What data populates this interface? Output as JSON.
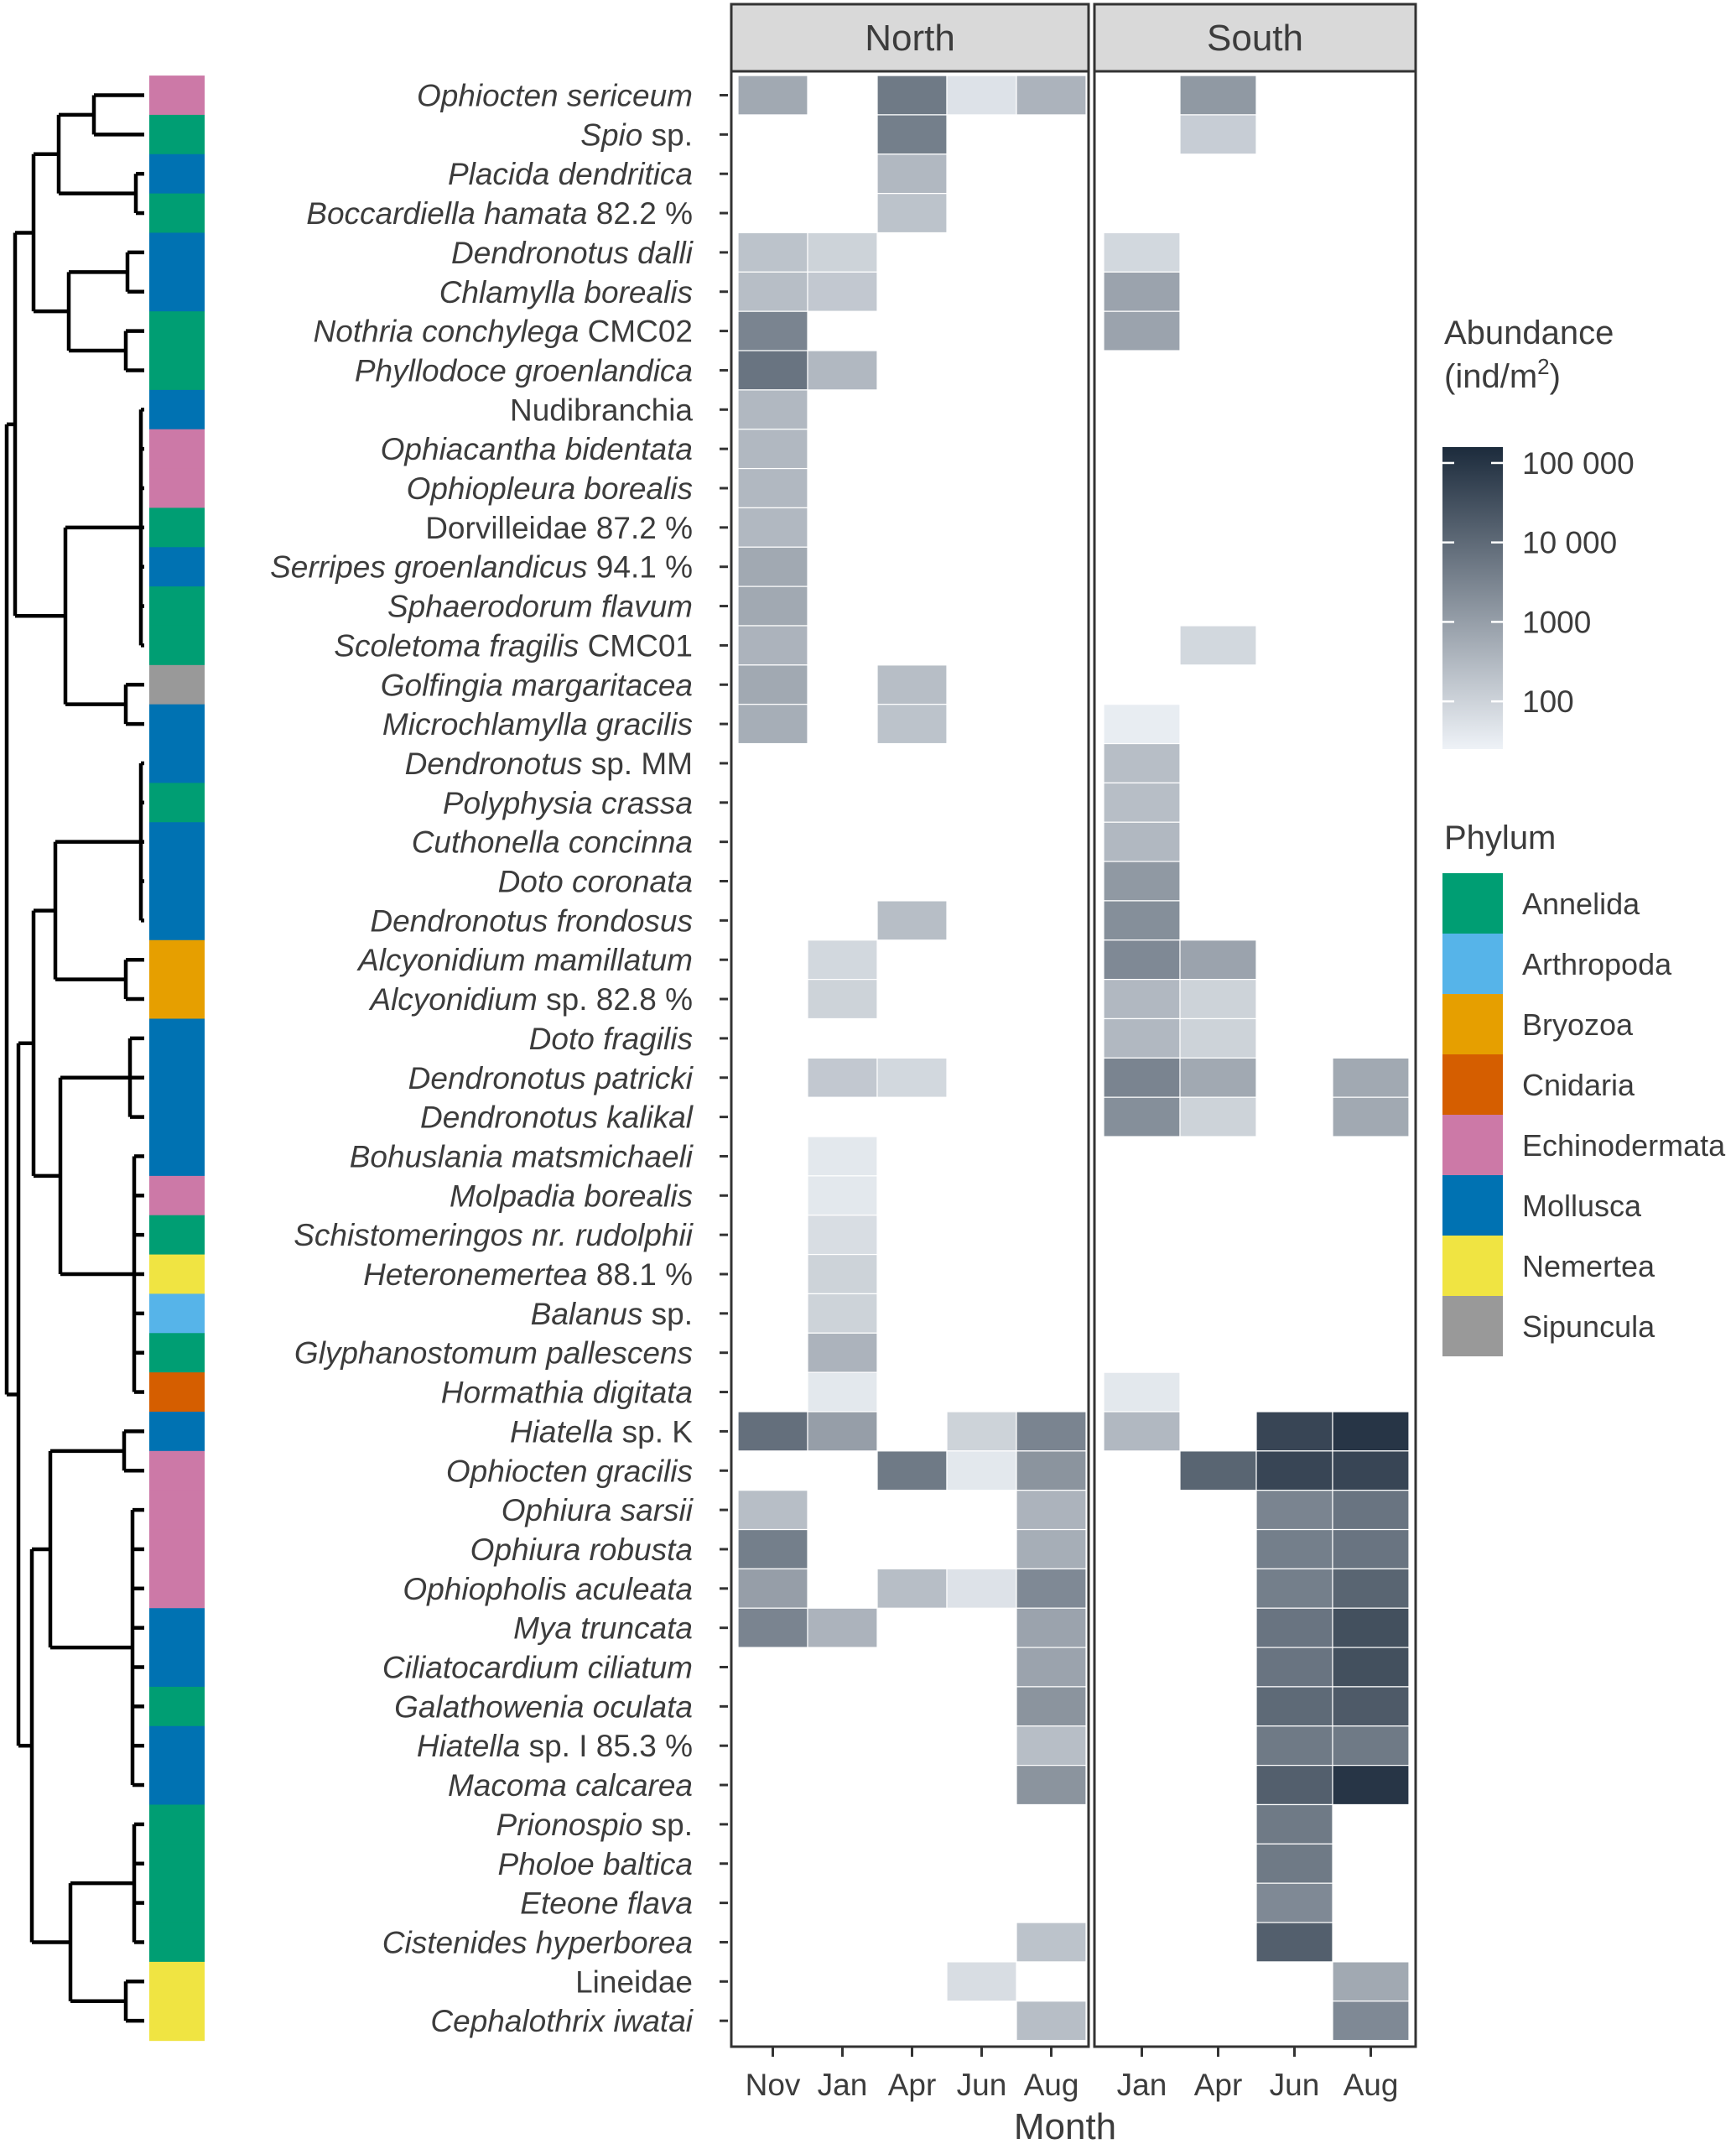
{
  "chart_data": {
    "type": "heatmap",
    "xlabel": "Month",
    "facets": [
      {
        "name": "North",
        "months": [
          "Nov",
          "Jan",
          "Apr",
          "Jun",
          "Aug"
        ]
      },
      {
        "name": "South",
        "months": [
          "Jan",
          "Apr",
          "Jun",
          "Aug"
        ]
      }
    ],
    "species": [
      {
        "name": "Ophiocten sericeum",
        "italic": "Ophiocten sericeum",
        "suffix": "",
        "phylum": "Echinodermata"
      },
      {
        "name": "Spio sp.",
        "italic": "Spio",
        "suffix": " sp.",
        "phylum": "Annelida"
      },
      {
        "name": "Placida dendritica",
        "italic": "Placida dendritica",
        "suffix": "",
        "phylum": "Mollusca"
      },
      {
        "name": "Boccardiella hamata 82.2 %",
        "italic": "Boccardiella hamata",
        "suffix": " 82.2 %",
        "phylum": "Annelida"
      },
      {
        "name": "Dendronotus dalli",
        "italic": "Dendronotus dalli",
        "suffix": "",
        "phylum": "Mollusca"
      },
      {
        "name": "Chlamylla borealis",
        "italic": "Chlamylla borealis",
        "suffix": "",
        "phylum": "Mollusca"
      },
      {
        "name": "Nothria conchylega CMC02",
        "italic": "Nothria conchylega",
        "suffix": " CMC02",
        "phylum": "Annelida"
      },
      {
        "name": "Phyllodoce groenlandica",
        "italic": "Phyllodoce groenlandica",
        "suffix": "",
        "phylum": "Annelida"
      },
      {
        "name": "Nudibranchia",
        "italic": "",
        "suffix": "Nudibranchia",
        "phylum": "Mollusca"
      },
      {
        "name": "Ophiacantha bidentata",
        "italic": "Ophiacantha bidentata",
        "suffix": "",
        "phylum": "Echinodermata"
      },
      {
        "name": "Ophiopleura borealis",
        "italic": "Ophiopleura borealis",
        "suffix": "",
        "phylum": "Echinodermata"
      },
      {
        "name": "Dorvilleidae 87.2 %",
        "italic": "",
        "suffix": "Dorvilleidae 87.2 %",
        "phylum": "Annelida"
      },
      {
        "name": "Serripes groenlandicus 94.1 %",
        "italic": "Serripes groenlandicus",
        "suffix": " 94.1 %",
        "phylum": "Mollusca"
      },
      {
        "name": "Sphaerodorum flavum",
        "italic": "Sphaerodorum flavum",
        "suffix": "",
        "phylum": "Annelida"
      },
      {
        "name": "Scoletoma fragilis CMC01",
        "italic": "Scoletoma fragilis",
        "suffix": " CMC01",
        "phylum": "Annelida"
      },
      {
        "name": "Golfingia margaritacea",
        "italic": "Golfingia margaritacea",
        "suffix": "",
        "phylum": "Sipuncula"
      },
      {
        "name": "Microchlamylla gracilis",
        "italic": "Microchlamylla gracilis",
        "suffix": "",
        "phylum": "Mollusca"
      },
      {
        "name": "Dendronotus sp. MM",
        "italic": "Dendronotus",
        "suffix": " sp. MM",
        "phylum": "Mollusca"
      },
      {
        "name": "Polyphysia crassa",
        "italic": "Polyphysia crassa",
        "suffix": "",
        "phylum": "Annelida"
      },
      {
        "name": "Cuthonella concinna",
        "italic": "Cuthonella concinna",
        "suffix": "",
        "phylum": "Mollusca"
      },
      {
        "name": "Doto coronata",
        "italic": "Doto coronata",
        "suffix": "",
        "phylum": "Mollusca"
      },
      {
        "name": "Dendronotus frondosus",
        "italic": "Dendronotus frondosus",
        "suffix": "",
        "phylum": "Mollusca"
      },
      {
        "name": "Alcyonidium mamillatum",
        "italic": "Alcyonidium mamillatum",
        "suffix": "",
        "phylum": "Bryozoa"
      },
      {
        "name": "Alcyonidium sp. 82.8 %",
        "italic": "Alcyonidium",
        "suffix": " sp. 82.8 %",
        "phylum": "Bryozoa"
      },
      {
        "name": "Doto fragilis",
        "italic": "Doto fragilis",
        "suffix": "",
        "phylum": "Mollusca"
      },
      {
        "name": "Dendronotus patricki",
        "italic": "Dendronotus patricki",
        "suffix": "",
        "phylum": "Mollusca"
      },
      {
        "name": "Dendronotus kalikal",
        "italic": "Dendronotus kalikal",
        "suffix": "",
        "phylum": "Mollusca"
      },
      {
        "name": "Bohuslania matsmichaeli",
        "italic": "Bohuslania matsmichaeli",
        "suffix": "",
        "phylum": "Mollusca"
      },
      {
        "name": "Molpadia borealis",
        "italic": "Molpadia borealis",
        "suffix": "",
        "phylum": "Echinodermata"
      },
      {
        "name": "Schistomeringos nr. rudolphii",
        "italic": "Schistomeringos nr. rudolphii",
        "suffix": "",
        "phylum": "Annelida"
      },
      {
        "name": "Heteronemertea 88.1 %",
        "italic": "Heteronemertea",
        "suffix": " 88.1 %",
        "phylum": "Nemertea"
      },
      {
        "name": "Balanus sp.",
        "italic": "Balanus",
        "suffix": " sp.",
        "phylum": "Arthropoda"
      },
      {
        "name": "Glyphanostomum pallescens",
        "italic": "Glyphanostomum pallescens",
        "suffix": "",
        "phylum": "Annelida"
      },
      {
        "name": "Hormathia digitata",
        "italic": "Hormathia digitata",
        "suffix": "",
        "phylum": "Cnidaria"
      },
      {
        "name": "Hiatella sp. K",
        "italic": "Hiatella",
        "suffix": " sp. K",
        "phylum": "Mollusca"
      },
      {
        "name": "Ophiocten gracilis",
        "italic": "Ophiocten gracilis",
        "suffix": "",
        "phylum": "Echinodermata"
      },
      {
        "name": "Ophiura sarsii",
        "italic": "Ophiura sarsii",
        "suffix": "",
        "phylum": "Echinodermata"
      },
      {
        "name": "Ophiura robusta",
        "italic": "Ophiura robusta",
        "suffix": "",
        "phylum": "Echinodermata"
      },
      {
        "name": "Ophiopholis aculeata",
        "italic": "Ophiopholis aculeata",
        "suffix": "",
        "phylum": "Echinodermata"
      },
      {
        "name": "Mya truncata",
        "italic": "Mya truncata",
        "suffix": "",
        "phylum": "Mollusca"
      },
      {
        "name": "Ciliatocardium ciliatum",
        "italic": "Ciliatocardium ciliatum",
        "suffix": "",
        "phylum": "Mollusca"
      },
      {
        "name": "Galathowenia oculata",
        "italic": "Galathowenia oculata",
        "suffix": "",
        "phylum": "Annelida"
      },
      {
        "name": "Hiatella sp. I 85.3 %",
        "italic": "Hiatella",
        "suffix": " sp. I 85.3 %",
        "phylum": "Mollusca"
      },
      {
        "name": "Macoma calcarea",
        "italic": "Macoma calcarea",
        "suffix": "",
        "phylum": "Mollusca"
      },
      {
        "name": "Prionospio sp.",
        "italic": "Prionospio",
        "suffix": " sp.",
        "phylum": "Annelida"
      },
      {
        "name": "Pholoe baltica",
        "italic": "Pholoe baltica",
        "suffix": "",
        "phylum": "Annelida"
      },
      {
        "name": "Eteone flava",
        "italic": "Eteone flava",
        "suffix": "",
        "phylum": "Annelida"
      },
      {
        "name": "Cistenides hyperborea",
        "italic": "Cistenides hyperborea",
        "suffix": "",
        "phylum": "Annelida"
      },
      {
        "name": "Lineidae",
        "italic": "",
        "suffix": "Lineidae",
        "phylum": "Nemertea"
      },
      {
        "name": "Cephalothrix iwatai",
        "italic": "Cephalothrix iwatai",
        "suffix": "",
        "phylum": "Nemertea"
      }
    ],
    "abundance_log10": {
      "North": [
        [
          2.8,
          null,
          3.7,
          1.7,
          2.6
        ],
        [
          null,
          null,
          3.6,
          null,
          null
        ],
        [
          null,
          null,
          2.5,
          null,
          null
        ],
        [
          null,
          null,
          2.3,
          null,
          null
        ],
        [
          2.3,
          2.0,
          null,
          null,
          null
        ],
        [
          2.4,
          2.2,
          null,
          null,
          null
        ],
        [
          3.5,
          null,
          null,
          null,
          null
        ],
        [
          3.8,
          2.5,
          null,
          null,
          null
        ],
        [
          2.5,
          null,
          null,
          null,
          null
        ],
        [
          2.5,
          null,
          null,
          null,
          null
        ],
        [
          2.5,
          null,
          null,
          null,
          null
        ],
        [
          2.5,
          null,
          null,
          null,
          null
        ],
        [
          2.8,
          null,
          null,
          null,
          null
        ],
        [
          2.8,
          null,
          null,
          null,
          null
        ],
        [
          2.6,
          null,
          null,
          null,
          null
        ],
        [
          2.8,
          null,
          2.4,
          null,
          null
        ],
        [
          2.7,
          null,
          2.3,
          null,
          null
        ],
        [
          null,
          null,
          null,
          null,
          null
        ],
        [
          null,
          null,
          null,
          null,
          null
        ],
        [
          null,
          null,
          null,
          null,
          null
        ],
        [
          null,
          null,
          null,
          null,
          null
        ],
        [
          null,
          null,
          2.4,
          null,
          null
        ],
        [
          null,
          1.9,
          null,
          null,
          null
        ],
        [
          null,
          2.0,
          null,
          null,
          null
        ],
        [
          null,
          null,
          null,
          null,
          null
        ],
        [
          null,
          2.2,
          1.9,
          null,
          null
        ],
        [
          null,
          null,
          null,
          null,
          null
        ],
        [
          null,
          1.6,
          null,
          null,
          null
        ],
        [
          null,
          1.6,
          null,
          null,
          null
        ],
        [
          null,
          1.8,
          null,
          null,
          null
        ],
        [
          null,
          2.0,
          null,
          null,
          null
        ],
        [
          null,
          2.0,
          null,
          null,
          null
        ],
        [
          null,
          2.6,
          null,
          null,
          null
        ],
        [
          null,
          1.6,
          null,
          null,
          null
        ],
        [
          3.9,
          3.0,
          null,
          2.0,
          3.5
        ],
        [
          null,
          null,
          3.7,
          1.6,
          3.2
        ],
        [
          2.4,
          null,
          null,
          null,
          2.6
        ],
        [
          3.6,
          null,
          null,
          null,
          2.7
        ],
        [
          3.0,
          null,
          2.4,
          1.7,
          3.4
        ],
        [
          3.5,
          2.6,
          null,
          null,
          2.9
        ],
        [
          null,
          null,
          null,
          null,
          2.9
        ],
        [
          null,
          null,
          null,
          null,
          3.2
        ],
        [
          null,
          null,
          null,
          null,
          2.4
        ],
        [
          null,
          null,
          null,
          null,
          3.2
        ],
        [
          null,
          null,
          null,
          null,
          null
        ],
        [
          null,
          null,
          null,
          null,
          null
        ],
        [
          null,
          null,
          null,
          null,
          null
        ],
        [
          null,
          null,
          null,
          null,
          2.3
        ],
        [
          null,
          null,
          null,
          1.8,
          null
        ],
        [
          null,
          null,
          null,
          null,
          2.4
        ]
      ],
      "South": [
        [
          null,
          3.1,
          null,
          null
        ],
        [
          null,
          2.1,
          null,
          null
        ],
        [
          null,
          null,
          null,
          null
        ],
        [
          null,
          null,
          null,
          null
        ],
        [
          1.9,
          null,
          null,
          null
        ],
        [
          2.9,
          null,
          null,
          null
        ],
        [
          2.9,
          null,
          null,
          null
        ],
        [
          null,
          null,
          null,
          null
        ],
        [
          null,
          null,
          null,
          null
        ],
        [
          null,
          null,
          null,
          null
        ],
        [
          null,
          null,
          null,
          null
        ],
        [
          null,
          null,
          null,
          null
        ],
        [
          null,
          null,
          null,
          null
        ],
        [
          null,
          null,
          null,
          null
        ],
        [
          null,
          1.9,
          null,
          null
        ],
        [
          null,
          null,
          null,
          null
        ],
        [
          1.5,
          null,
          null,
          null
        ],
        [
          2.4,
          null,
          null,
          null
        ],
        [
          2.4,
          null,
          null,
          null
        ],
        [
          2.5,
          null,
          null,
          null
        ],
        [
          3.1,
          null,
          null,
          null
        ],
        [
          3.3,
          null,
          null,
          null
        ],
        [
          3.4,
          2.9,
          null,
          null
        ],
        [
          2.5,
          2.0,
          null,
          null
        ],
        [
          2.5,
          2.0,
          null,
          null
        ],
        [
          3.5,
          2.8,
          null,
          2.8
        ],
        [
          3.3,
          2.0,
          null,
          2.8
        ],
        [
          null,
          null,
          null,
          null
        ],
        [
          null,
          null,
          null,
          null
        ],
        [
          null,
          null,
          null,
          null
        ],
        [
          null,
          null,
          null,
          null
        ],
        [
          null,
          null,
          null,
          null
        ],
        [
          null,
          null,
          null,
          null
        ],
        [
          1.6,
          null,
          null,
          null
        ],
        [
          2.5,
          null,
          4.7,
          5.0
        ],
        [
          null,
          4.1,
          4.7,
          4.7
        ],
        [
          null,
          null,
          3.5,
          3.8
        ],
        [
          null,
          null,
          3.6,
          3.8
        ],
        [
          null,
          null,
          3.6,
          4.1
        ],
        [
          null,
          null,
          3.8,
          4.5
        ],
        [
          null,
          null,
          3.8,
          4.5
        ],
        [
          null,
          null,
          4.0,
          4.3
        ],
        [
          null,
          null,
          3.7,
          3.7
        ],
        [
          null,
          null,
          4.2,
          5.0
        ],
        [
          null,
          null,
          3.7,
          null
        ],
        [
          null,
          null,
          3.7,
          null
        ],
        [
          null,
          null,
          3.4,
          null
        ],
        [
          null,
          null,
          4.2,
          null
        ],
        [
          null,
          null,
          null,
          2.8
        ],
        [
          null,
          null,
          null,
          3.4
        ]
      ]
    },
    "legend": {
      "abundance_title_line1": "Abundance",
      "abundance_title_line2": "(ind/m",
      "abundance_title_sup": "2",
      "abundance_title_close": ")",
      "colorbar_log10_range": [
        1.4,
        5.2
      ],
      "colorbar_ticks": [
        {
          "label": "100 000",
          "log10": 5
        },
        {
          "label": "10 000",
          "log10": 4
        },
        {
          "label": "1000",
          "log10": 3
        },
        {
          "label": "100",
          "log10": 2
        }
      ],
      "color_low": "#eef2f7",
      "color_high": "#1c2b3c",
      "phylum_title": "Phylum",
      "phyla": [
        {
          "name": "Annelida",
          "color": "#009E73"
        },
        {
          "name": "Arthropoda",
          "color": "#56B4E9"
        },
        {
          "name": "Bryozoa",
          "color": "#E69F00"
        },
        {
          "name": "Cnidaria",
          "color": "#D55E00"
        },
        {
          "name": "Echinodermata",
          "color": "#CC79A7"
        },
        {
          "name": "Mollusca",
          "color": "#0072B2"
        },
        {
          "name": "Nemertea",
          "color": "#F0E442"
        },
        {
          "name": "Sipuncula",
          "color": "#999999"
        }
      ]
    }
  }
}
